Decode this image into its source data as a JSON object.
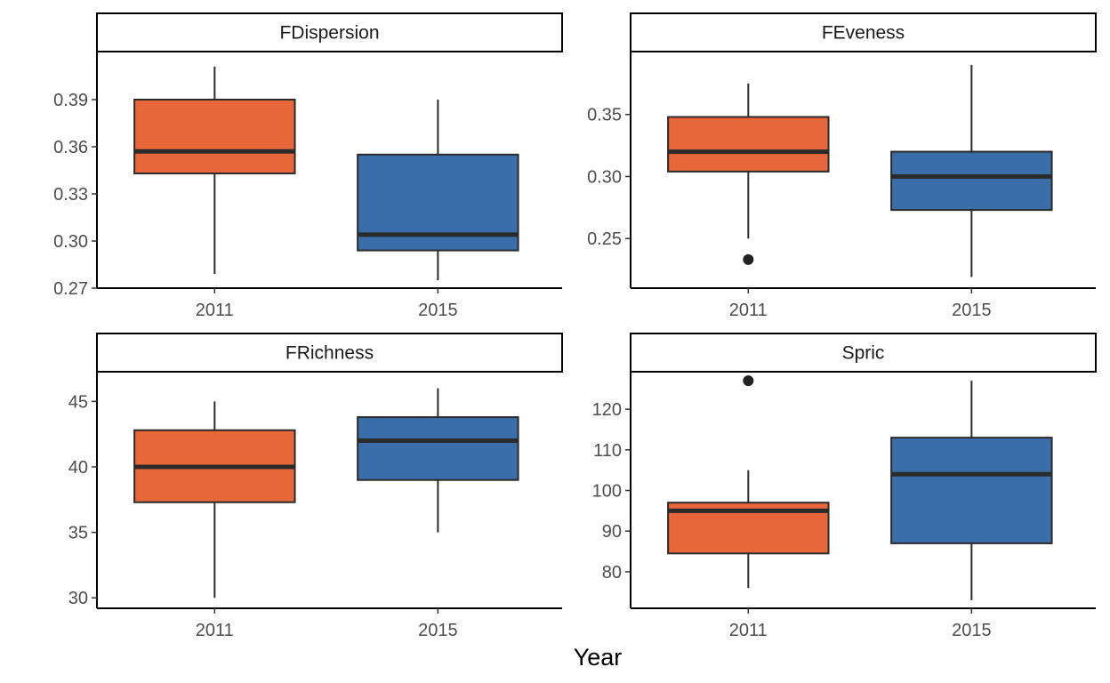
{
  "xlabel": "Year",
  "colors": {
    "2011": "#E8673A",
    "2015": "#3A6EA8",
    "median": "#2b2b2b",
    "outline": "#2b2b2b"
  },
  "chart_data": [
    {
      "type": "boxplot",
      "title": "FDispersion",
      "categories": [
        "2011",
        "2015"
      ],
      "ylim": [
        0.27,
        0.42
      ],
      "yticks": [
        0.27,
        0.3,
        0.33,
        0.36,
        0.39
      ],
      "ytick_labels": [
        "0.27",
        "0.30",
        "0.33",
        "0.36",
        "0.39"
      ],
      "boxes": [
        {
          "year": "2011",
          "min": 0.279,
          "q1": 0.343,
          "median": 0.357,
          "q3": 0.39,
          "max": 0.411,
          "outliers": []
        },
        {
          "year": "2015",
          "min": 0.275,
          "q1": 0.294,
          "median": 0.304,
          "q3": 0.355,
          "max": 0.39,
          "outliers": []
        }
      ]
    },
    {
      "type": "boxplot",
      "title": "FEveness",
      "categories": [
        "2011",
        "2015"
      ],
      "ylim": [
        0.21,
        0.4
      ],
      "yticks": [
        0.25,
        0.3,
        0.35
      ],
      "ytick_labels": [
        "0.25",
        "0.30",
        "0.35"
      ],
      "boxes": [
        {
          "year": "2011",
          "min": 0.25,
          "q1": 0.304,
          "median": 0.32,
          "q3": 0.348,
          "max": 0.375,
          "outliers": [
            0.233
          ]
        },
        {
          "year": "2015",
          "min": 0.219,
          "q1": 0.273,
          "median": 0.3,
          "q3": 0.32,
          "max": 0.39,
          "outliers": []
        }
      ]
    },
    {
      "type": "boxplot",
      "title": "FRichness",
      "categories": [
        "2011",
        "2015"
      ],
      "ylim": [
        29.2,
        47.2
      ],
      "yticks": [
        30,
        35,
        40,
        45
      ],
      "ytick_labels": [
        "30",
        "35",
        "40",
        "45"
      ],
      "boxes": [
        {
          "year": "2011",
          "min": 30,
          "q1": 37.3,
          "median": 40,
          "q3": 42.8,
          "max": 45,
          "outliers": []
        },
        {
          "year": "2015",
          "min": 35,
          "q1": 39,
          "median": 42,
          "q3": 43.8,
          "max": 46,
          "outliers": []
        }
      ]
    },
    {
      "type": "boxplot",
      "title": "Spric",
      "categories": [
        "2011",
        "2015"
      ],
      "ylim": [
        71,
        129
      ],
      "yticks": [
        80,
        90,
        100,
        110,
        120
      ],
      "ytick_labels": [
        "80",
        "90",
        "100",
        "110",
        "120"
      ],
      "boxes": [
        {
          "year": "2011",
          "min": 76,
          "q1": 84.5,
          "median": 95,
          "q3": 97,
          "max": 105,
          "outliers": [
            127
          ]
        },
        {
          "year": "2015",
          "min": 73,
          "q1": 87,
          "median": 104,
          "q3": 113,
          "max": 127,
          "outliers": []
        }
      ]
    }
  ]
}
